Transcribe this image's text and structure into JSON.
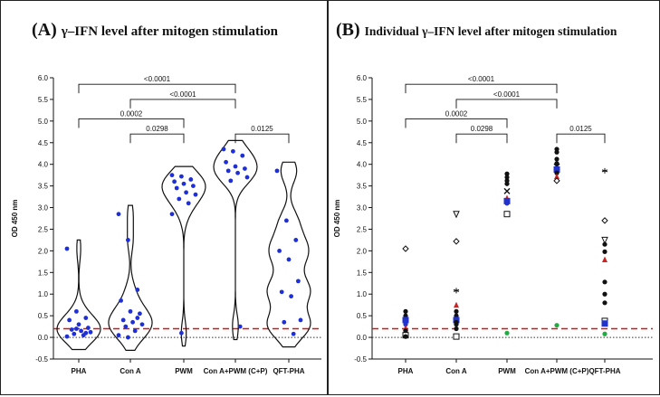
{
  "chart_data": [
    {
      "type": "violin",
      "panel_label": "(A)",
      "title": "γ–IFN level after mitogen stimulation",
      "xlabel": "",
      "ylabel": "OD 450 nm",
      "ylim": [
        -0.5,
        6.0
      ],
      "yticks": [
        "-0.5",
        "0.0",
        "0.5",
        "1.0",
        "1.5",
        "2.0",
        "2.5",
        "3.0",
        "3.5",
        "4.0",
        "4.5",
        "5.0",
        "5.5",
        "6.0"
      ],
      "categories": [
        "PHA",
        "Con A",
        "PWM",
        "Con A+PWM (C+P)",
        "QFT-PHA"
      ],
      "cutoff_line": 0.2,
      "zero_line": 0.0,
      "series": [
        {
          "name": "PHA",
          "values": [
            2.05,
            0.6,
            0.45,
            0.4,
            0.3,
            0.22,
            0.18,
            0.15,
            0.12,
            0.08,
            0.05,
            0.02,
            0.2,
            0.1
          ]
        },
        {
          "name": "Con A",
          "values": [
            2.85,
            2.25,
            1.1,
            0.85,
            0.6,
            0.55,
            0.4,
            0.35,
            0.3,
            0.25,
            0.15,
            0.05,
            0.0,
            0.45
          ]
        },
        {
          "name": "PWM",
          "values": [
            3.75,
            3.72,
            3.65,
            3.6,
            3.55,
            3.5,
            3.45,
            3.35,
            3.3,
            3.2,
            3.1,
            2.85,
            0.1
          ]
        },
        {
          "name": "Con A+PWM (C+P)",
          "values": [
            4.35,
            4.3,
            4.2,
            4.05,
            3.95,
            3.9,
            3.85,
            3.8,
            3.7,
            3.62,
            0.25
          ]
        },
        {
          "name": "QFT-PHA",
          "values": [
            3.85,
            2.7,
            2.25,
            2.0,
            1.8,
            1.3,
            1.05,
            0.95,
            0.4,
            0.35,
            0.08
          ]
        }
      ],
      "comparisons": [
        {
          "from": "PHA",
          "to": "Con A+PWM (C+P)",
          "label": "<0.0001",
          "y": 5.85
        },
        {
          "from": "Con A",
          "to": "Con A+PWM (C+P)",
          "label": "<0.0001",
          "y": 5.5
        },
        {
          "from": "PHA",
          "to": "PWM",
          "label": "0.0002",
          "y": 5.05
        },
        {
          "from": "Con A",
          "to": "PWM",
          "label": "0.0298",
          "y": 4.7
        },
        {
          "from": "Con A+PWM (C+P)",
          "to": "QFT-PHA",
          "label": "0.0125",
          "y": 4.7
        }
      ]
    },
    {
      "type": "scatter",
      "panel_label": "(B)",
      "title": "Individual γ–IFN level after mitogen stimulation",
      "xlabel": "",
      "ylabel": "OD 450 nm",
      "ylim": [
        -0.5,
        6.0
      ],
      "yticks": [
        "-0.5",
        "0.0",
        "0.5",
        "1.0",
        "1.5",
        "2.0",
        "2.5",
        "3.0",
        "3.5",
        "4.0",
        "4.5",
        "5.0",
        "5.5",
        "6.0"
      ],
      "categories": [
        "PHA",
        "Con A",
        "PWM",
        "Con A+PWM (C+P)",
        "QFT-PHA"
      ],
      "cutoff_line": 0.2,
      "zero_line": 0.0,
      "points": [
        {
          "cat": "PHA",
          "y": 2.05,
          "m": "diamond",
          "c": "#111"
        },
        {
          "cat": "PHA",
          "y": 0.6,
          "m": "circle",
          "c": "#111"
        },
        {
          "cat": "PHA",
          "y": 0.5,
          "m": "circle",
          "c": "#111"
        },
        {
          "cat": "PHA",
          "y": 0.4,
          "m": "square",
          "c": "#2233cc"
        },
        {
          "cat": "PHA",
          "y": 0.3,
          "m": "circle",
          "c": "#2233cc"
        },
        {
          "cat": "PHA",
          "y": 0.22,
          "m": "triangle",
          "c": "#cc2222"
        },
        {
          "cat": "PHA",
          "y": 0.15,
          "m": "circle",
          "c": "#111"
        },
        {
          "cat": "PHA",
          "y": 0.1,
          "m": "circle",
          "c": "#111"
        },
        {
          "cat": "PHA",
          "y": 0.05,
          "m": "square",
          "c": "#111"
        },
        {
          "cat": "PHA",
          "y": 0.02,
          "m": "circle",
          "c": "#111"
        },
        {
          "cat": "Con A",
          "y": 2.85,
          "m": "triangle-down",
          "c": "#111"
        },
        {
          "cat": "Con A",
          "y": 2.22,
          "m": "diamond",
          "c": "#111"
        },
        {
          "cat": "Con A",
          "y": 1.08,
          "m": "star",
          "c": "#111"
        },
        {
          "cat": "Con A",
          "y": 0.75,
          "m": "triangle",
          "c": "#cc2222"
        },
        {
          "cat": "Con A",
          "y": 0.6,
          "m": "circle",
          "c": "#111"
        },
        {
          "cat": "Con A",
          "y": 0.5,
          "m": "circle",
          "c": "#111"
        },
        {
          "cat": "Con A",
          "y": 0.4,
          "m": "square",
          "c": "#2233cc"
        },
        {
          "cat": "Con A",
          "y": 0.35,
          "m": "circle",
          "c": "#111"
        },
        {
          "cat": "Con A",
          "y": 0.3,
          "m": "circle",
          "c": "#111"
        },
        {
          "cat": "Con A",
          "y": 0.2,
          "m": "circle",
          "c": "#111"
        },
        {
          "cat": "Con A",
          "y": 0.02,
          "m": "square",
          "c": "#111"
        },
        {
          "cat": "PWM",
          "y": 3.78,
          "m": "circle",
          "c": "#111"
        },
        {
          "cat": "PWM",
          "y": 3.7,
          "m": "circle",
          "c": "#111"
        },
        {
          "cat": "PWM",
          "y": 3.62,
          "m": "circle",
          "c": "#111"
        },
        {
          "cat": "PWM",
          "y": 3.55,
          "m": "circle",
          "c": "#111"
        },
        {
          "cat": "PWM",
          "y": 3.38,
          "m": "x",
          "c": "#111"
        },
        {
          "cat": "PWM",
          "y": 3.22,
          "m": "triangle",
          "c": "#cc2222"
        },
        {
          "cat": "PWM",
          "y": 3.15,
          "m": "square",
          "c": "#2233cc"
        },
        {
          "cat": "PWM",
          "y": 3.1,
          "m": "circle",
          "c": "#2233cc"
        },
        {
          "cat": "PWM",
          "y": 2.85,
          "m": "square",
          "c": "#111"
        },
        {
          "cat": "PWM",
          "y": 0.1,
          "m": "circle",
          "c": "#22aa44"
        },
        {
          "cat": "Con A+PWM (C+P)",
          "y": 4.35,
          "m": "circle",
          "c": "#111"
        },
        {
          "cat": "Con A+PWM (C+P)",
          "y": 4.28,
          "m": "circle",
          "c": "#111"
        },
        {
          "cat": "Con A+PWM (C+P)",
          "y": 4.12,
          "m": "circle",
          "c": "#111"
        },
        {
          "cat": "Con A+PWM (C+P)",
          "y": 4.02,
          "m": "circle",
          "c": "#111"
        },
        {
          "cat": "Con A+PWM (C+P)",
          "y": 3.95,
          "m": "x",
          "c": "#111"
        },
        {
          "cat": "Con A+PWM (C+P)",
          "y": 3.88,
          "m": "square",
          "c": "#2233cc"
        },
        {
          "cat": "Con A+PWM (C+P)",
          "y": 3.8,
          "m": "circle",
          "c": "#111"
        },
        {
          "cat": "Con A+PWM (C+P)",
          "y": 3.72,
          "m": "triangle",
          "c": "#cc2222"
        },
        {
          "cat": "Con A+PWM (C+P)",
          "y": 3.62,
          "m": "diamond",
          "c": "#111"
        },
        {
          "cat": "Con A+PWM (C+P)",
          "y": 0.28,
          "m": "circle",
          "c": "#22aa44"
        },
        {
          "cat": "QFT-PHA",
          "y": 3.85,
          "m": "star",
          "c": "#111"
        },
        {
          "cat": "QFT-PHA",
          "y": 2.7,
          "m": "diamond",
          "c": "#111"
        },
        {
          "cat": "QFT-PHA",
          "y": 2.25,
          "m": "triangle-down",
          "c": "#111"
        },
        {
          "cat": "QFT-PHA",
          "y": 2.15,
          "m": "circle",
          "c": "#111"
        },
        {
          "cat": "QFT-PHA",
          "y": 1.98,
          "m": "circle",
          "c": "#111"
        },
        {
          "cat": "QFT-PHA",
          "y": 1.8,
          "m": "triangle",
          "c": "#cc2222"
        },
        {
          "cat": "QFT-PHA",
          "y": 1.28,
          "m": "circle",
          "c": "#111"
        },
        {
          "cat": "QFT-PHA",
          "y": 1.0,
          "m": "circle",
          "c": "#111"
        },
        {
          "cat": "QFT-PHA",
          "y": 0.8,
          "m": "circle",
          "c": "#111"
        },
        {
          "cat": "QFT-PHA",
          "y": 0.38,
          "m": "square",
          "c": "#111"
        },
        {
          "cat": "QFT-PHA",
          "y": 0.32,
          "m": "square",
          "c": "#2233cc"
        },
        {
          "cat": "QFT-PHA",
          "y": 0.08,
          "m": "circle",
          "c": "#22aa44"
        }
      ],
      "comparisons": [
        {
          "from": "PHA",
          "to": "Con A+PWM (C+P)",
          "label": "<0.0001",
          "y": 5.85
        },
        {
          "from": "Con A",
          "to": "Con A+PWM (C+P)",
          "label": "<0.0001",
          "y": 5.5
        },
        {
          "from": "PHA",
          "to": "PWM",
          "label": "0.0002",
          "y": 5.05
        },
        {
          "from": "Con A",
          "to": "PWM",
          "label": "0.0298",
          "y": 4.7
        },
        {
          "from": "Con A+PWM (C+P)",
          "to": "QFT-PHA",
          "label": "0.0125",
          "y": 4.7
        }
      ]
    }
  ],
  "colors": {
    "dot": "#1f2fd6",
    "cutoff": "#e01010",
    "axis": "#111111"
  }
}
